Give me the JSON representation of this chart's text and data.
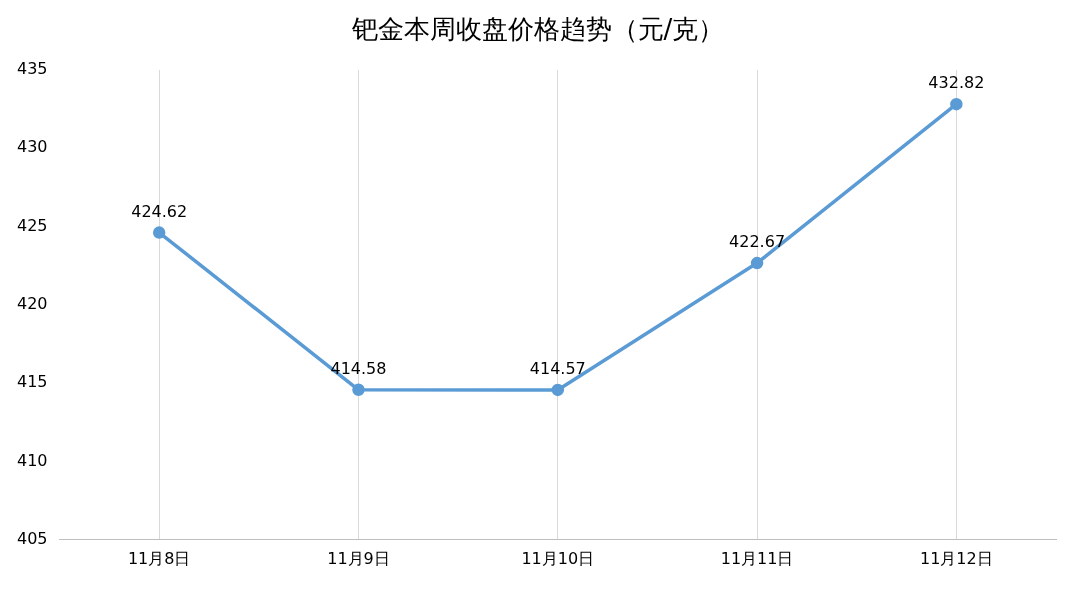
{
  "chart_data": {
    "type": "line",
    "title": "钯金本周收盘价格趋势（元/克）",
    "categories": [
      "11月8日",
      "11月9日",
      "11月10日",
      "11月11日",
      "11月12日"
    ],
    "series": [
      {
        "color": "#5b9bd5",
        "values": [
          424.62,
          414.58,
          414.57,
          422.67,
          432.82
        ]
      }
    ],
    "ylim": [
      405,
      435
    ],
    "yticks": [
      405,
      410,
      415,
      420,
      425,
      430,
      435
    ],
    "grid": "x",
    "legend": false,
    "marker": "circle",
    "line_style": "solid",
    "data_labels": true
  }
}
